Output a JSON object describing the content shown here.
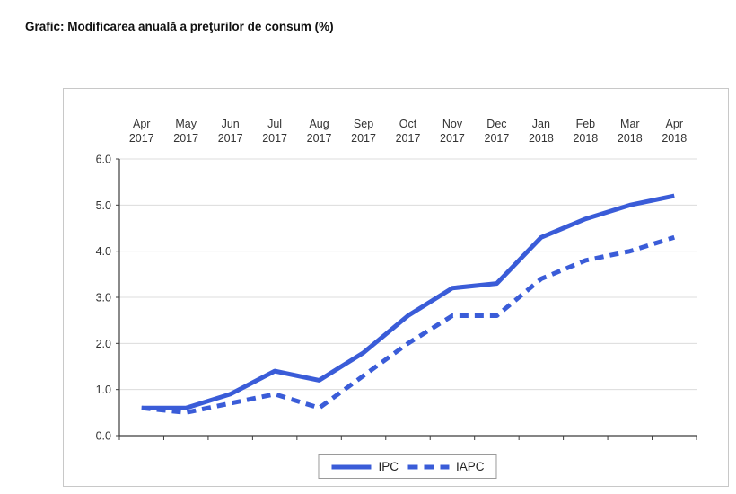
{
  "title": "Grafic: Modificarea anuală a preţurilor de consum (%)",
  "chart_data": {
    "type": "line",
    "title": "Grafic: Modificarea anuală a preţurilor de consum (%)",
    "categories": [
      {
        "month": "Apr",
        "year": "2017"
      },
      {
        "month": "May",
        "year": "2017"
      },
      {
        "month": "Jun",
        "year": "2017"
      },
      {
        "month": "Jul",
        "year": "2017"
      },
      {
        "month": "Aug",
        "year": "2017"
      },
      {
        "month": "Sep",
        "year": "2017"
      },
      {
        "month": "Oct",
        "year": "2017"
      },
      {
        "month": "Nov",
        "year": "2017"
      },
      {
        "month": "Dec",
        "year": "2017"
      },
      {
        "month": "Jan",
        "year": "2018"
      },
      {
        "month": "Feb",
        "year": "2018"
      },
      {
        "month": "Mar",
        "year": "2018"
      },
      {
        "month": "Apr",
        "year": "2018"
      }
    ],
    "series": [
      {
        "name": "IPC",
        "style": "solid",
        "values": [
          0.6,
          0.6,
          0.9,
          1.4,
          1.2,
          1.8,
          2.6,
          3.2,
          3.3,
          4.3,
          4.7,
          5.0,
          5.2
        ]
      },
      {
        "name": "IAPC",
        "style": "dashed",
        "values": [
          0.6,
          0.5,
          0.7,
          0.9,
          0.6,
          1.3,
          2.0,
          2.6,
          2.6,
          3.4,
          3.8,
          4.0,
          4.3
        ]
      }
    ],
    "ylim": [
      0,
      6
    ],
    "ytick_step": 1,
    "ytick_labels": [
      "0.0",
      "1.0",
      "2.0",
      "3.0",
      "4.0",
      "5.0",
      "6.0"
    ],
    "xlabel": "",
    "ylabel": "",
    "grid": "horizontal",
    "legend_position": "bottom-center",
    "colors": {
      "line": "#3a5cd8",
      "grid": "#dcdcdc",
      "axis": "#3c3c3c",
      "label": "#333333",
      "box_border": "#c8c8c8",
      "legend_border": "#9a9a9a"
    }
  }
}
